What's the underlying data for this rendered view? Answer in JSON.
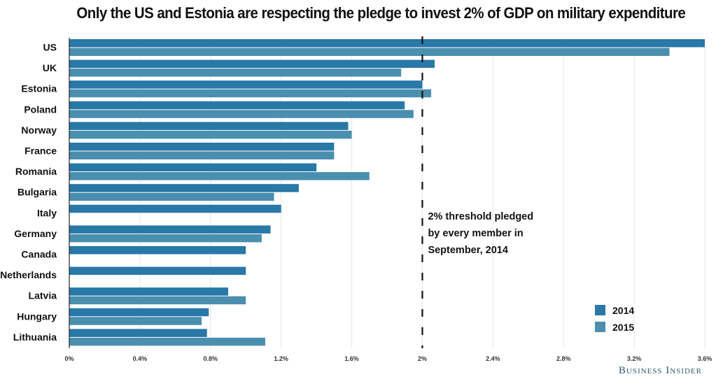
{
  "chart_data": {
    "type": "bar",
    "orientation": "horizontal",
    "title": "Only the US and Estonia are respecting the pledge to invest 2% of GDP on military expenditure",
    "xlabel": "",
    "ylabel": "",
    "xlim": [
      0,
      3.6
    ],
    "x_ticks": [
      0,
      0.4,
      0.8,
      1.2,
      1.6,
      2.0,
      2.4,
      2.8,
      3.2,
      3.6
    ],
    "x_tick_labels": [
      "0%",
      "0.4%",
      "0.8%",
      "1.2%",
      "1.6%",
      "2%",
      "2.4%",
      "2.8%",
      "3.2%",
      "3.6%"
    ],
    "grid": true,
    "categories": [
      "US",
      "UK",
      "Estonia",
      "Poland",
      "Norway",
      "France",
      "Romania",
      "Bulgaria",
      "Italy",
      "Germany",
      "Canada",
      "Netherlands",
      "Latvia",
      "Hungary",
      "Lithuania"
    ],
    "series": [
      {
        "name": "2014",
        "color": "#2878a8",
        "values": [
          3.6,
          2.07,
          2.0,
          1.9,
          1.58,
          1.5,
          1.4,
          1.3,
          1.2,
          1.14,
          1.0,
          1.0,
          0.9,
          0.79,
          0.78
        ]
      },
      {
        "name": "2015",
        "color": "#4a8fae",
        "values": [
          3.4,
          1.88,
          2.05,
          1.95,
          1.6,
          1.5,
          1.7,
          1.16,
          null,
          1.09,
          null,
          null,
          1.0,
          0.75,
          1.11
        ]
      }
    ],
    "threshold": {
      "value": 2.0,
      "label_lines": [
        "2% threshold pledged",
        "by every member in",
        "September, 2014"
      ]
    },
    "legend": {
      "placement": "bottom-right",
      "entries": [
        "2014",
        "2015"
      ]
    }
  },
  "source_brand": "Business Insider"
}
